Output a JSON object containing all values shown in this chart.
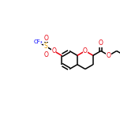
{
  "bg_color": "#ffffff",
  "bond_color": "#000000",
  "atom_colors": {
    "O": "#e8000d",
    "S": "#e8a000",
    "F": "#0000ff",
    "C": "#000000"
  },
  "line_width": 1.1,
  "figsize": [
    1.52,
    1.52
  ],
  "dpi": 100
}
